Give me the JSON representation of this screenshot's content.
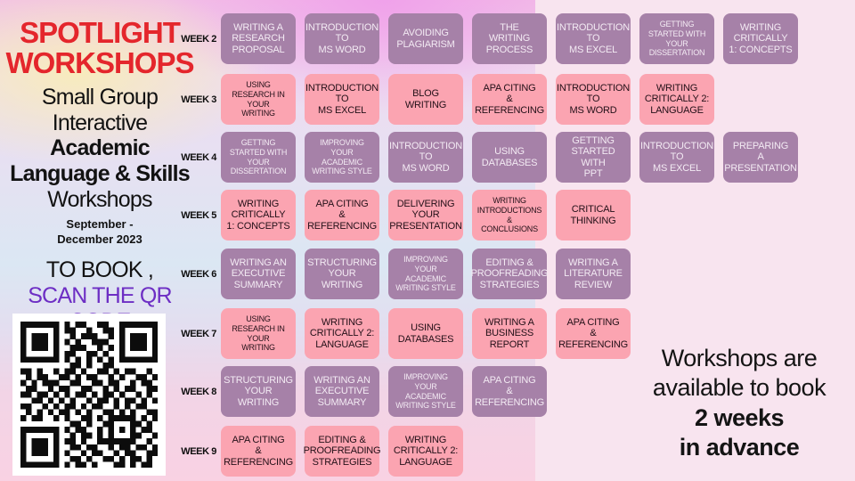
{
  "poster": {
    "title_line1": "SPOTLIGHT",
    "title_line2": "WORKSHOPS",
    "subtitle": {
      "line1": "Small Group",
      "line2": "Interactive",
      "line3": "Academic",
      "line4": "Language & Skills",
      "line5": "Workshops"
    },
    "dates_line1": "September -",
    "dates_line2": "December 2023",
    "booking": {
      "line1": "TO BOOK ,",
      "line2": "SCAN THE QR CODE"
    },
    "note": {
      "line1": "Workshops are",
      "line2": "available to book",
      "line3": "2 weeks",
      "line4": "in advance"
    },
    "colors": {
      "title_red": "#e4262c",
      "booking_purple": "#6d2ec4",
      "card_purple": "#a681a8",
      "card_purple_text": "#f3eaf3",
      "card_pink": "#fba4b1",
      "card_pink_text": "#231018"
    },
    "qr_matrix": [
      "1111111010110011001111111",
      "1000001011001001101000001",
      "1011101001011100101011101",
      "1011101010100111001011101",
      "1011101001110010101011101",
      "1000001011001101001000001",
      "1111111010101010101111111",
      "0000000001101001100000000",
      "1101001011010011010110010",
      "0101100110101100101001101",
      "1010111001100110110010110",
      "0110010110011001010110011",
      "1101101010110101101001010",
      "0011010101001011010110101",
      "1100101011010110010101100",
      "0101010110101001101010011",
      "1011001010011010111110101",
      "0000000001101001100011010",
      "1111111010110010101010110",
      "1000001001011010100011001",
      "1011101011010011111110010",
      "1011101001101100101101101",
      "1011101010010110010110011",
      "1000001001101001101011010",
      "1111111010110100011010110"
    ]
  },
  "schedule": {
    "weeks": [
      {
        "label": "WEEK 2",
        "color": "purple",
        "workshops": [
          "WRITING A\nRESEARCH\nPROPOSAL",
          "INTRODUCTION\nTO\nMS WORD",
          "AVOIDING\nPLAGIARISM",
          "THE\nWRITING\nPROCESS",
          "INTRODUCTION\nTO\nMS EXCEL",
          "GETTING\nSTARTED WITH\nYOUR\nDISSERTATION",
          "WRITING\nCRITICALLY\n1: CONCEPTS"
        ]
      },
      {
        "label": "WEEK 3",
        "color": "pink",
        "workshops": [
          "USING\nRESEARCH IN\nYOUR\nWRITING",
          "INTRODUCTION\nTO\nMS EXCEL",
          "BLOG\nWRITING",
          "APA CITING\n&\nREFERENCING",
          "INTRODUCTION\nTO\nMS WORD",
          "WRITING\nCRITICALLY 2:\nLANGUAGE"
        ]
      },
      {
        "label": "WEEK 4",
        "color": "purple",
        "workshops": [
          "GETTING\nSTARTED WITH\nYOUR\nDISSERTATION",
          "IMPROVING\nYOUR\nACADEMIC\nWRITING STYLE",
          "INTRODUCTION\nTO\nMS WORD",
          "USING\nDATABASES",
          "GETTING\nSTARTED WITH\nPPT",
          "INTRODUCTION\nTO\nMS EXCEL",
          "PREPARING\nA\nPRESENTATION"
        ]
      },
      {
        "label": "WEEK 5",
        "color": "pink",
        "workshops": [
          "WRITING\nCRITICALLY\n1: CONCEPTS",
          "APA CITING\n&\nREFERENCING",
          "DELIVERING\nYOUR\nPRESENTATION",
          "WRITING\nINTRODUCTIONS\n&\nCONCLUSIONS",
          "CRITICAL\nTHINKING"
        ]
      },
      {
        "label": "WEEK 6",
        "color": "purple",
        "workshops": [
          "WRITING AN\nEXECUTIVE\nSUMMARY",
          "STRUCTURING\nYOUR\nWRITING",
          "IMPROVING\nYOUR\nACADEMIC\nWRITING STYLE",
          "EDITING &\nPROOFREADING\nSTRATEGIES",
          "WRITING A\nLITERATURE\nREVIEW"
        ]
      },
      {
        "label": "WEEK 7",
        "color": "pink",
        "workshops": [
          "USING\nRESEARCH IN\nYOUR\nWRITING",
          "WRITING\nCRITICALLY 2:\nLANGUAGE",
          "USING\nDATABASES",
          "WRITING A\nBUSINESS\nREPORT",
          "APA CITING\n&\nREFERENCING"
        ]
      },
      {
        "label": "WEEK 8",
        "color": "purple",
        "workshops": [
          "STRUCTURING\nYOUR\nWRITING",
          "WRITING AN\nEXECUTIVE\nSUMMARY",
          "IMPROVING\nYOUR\nACADEMIC\nWRITING STYLE",
          "APA CITING\n&\nREFERENCING"
        ]
      },
      {
        "label": "WEEK 9",
        "color": "pink",
        "workshops": [
          "APA CITING\n&\nREFERENCING",
          "EDITING &\nPROOFREADING\nSTRATEGIES",
          "WRITING\nCRITICALLY 2:\nLANGUAGE"
        ]
      }
    ]
  }
}
